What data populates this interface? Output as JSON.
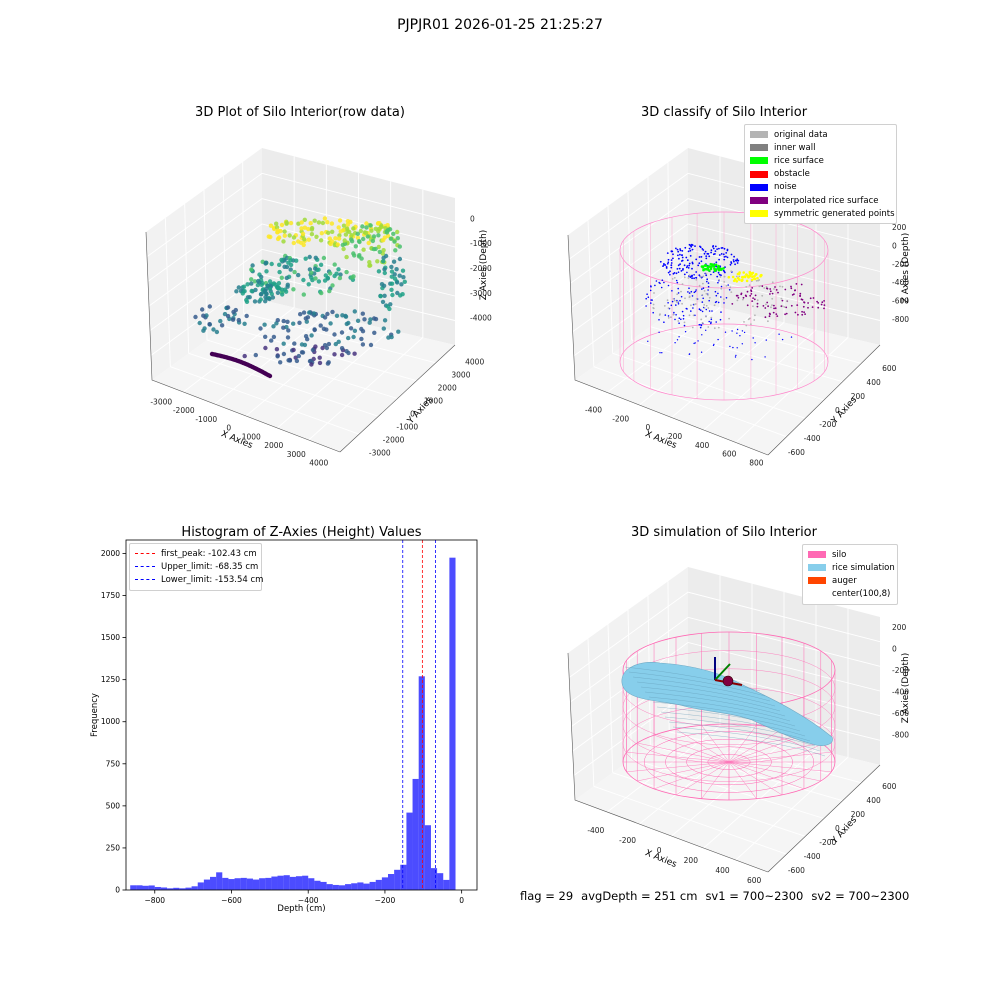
{
  "suptitle": "PJPJR01 2026-01-25 21:25:27",
  "footer": {
    "flag": "flag = 29",
    "avg_depth": "avgDepth = 251 cm",
    "sv1": "sv1 = 700~2300",
    "sv2": "sv2 = 700~2300"
  },
  "chart_data": [
    {
      "type": "scatter",
      "projection": "3d",
      "title": "3D Plot of Silo Interior(row data)",
      "xlabel": "X Axies",
      "ylabel": "Y Axies",
      "zlabel": "Z Axies (Depth)",
      "xticks": [
        "-3000",
        "-2000",
        "-1000",
        "0",
        "1000",
        "2000",
        "3000",
        "4000"
      ],
      "yticks": [
        "-3000",
        "-2000",
        "-1000",
        "0",
        "1000",
        "2000",
        "3000",
        "4000"
      ],
      "zticks": [
        "0",
        "-1000",
        "-2000",
        "-3000",
        "-4000"
      ],
      "colormap": "viridis",
      "grid": true
    },
    {
      "type": "scatter",
      "projection": "3d",
      "title": "3D classify of Silo Interior",
      "xlabel": "X Axies",
      "ylabel": "Y Axies",
      "zlabel": "Z Axies (Depth)",
      "xticks": [
        "-400",
        "-200",
        "0",
        "200",
        "400",
        "600",
        "800"
      ],
      "yticks": [
        "-600",
        "-400",
        "-200",
        "0",
        "200",
        "400",
        "600"
      ],
      "zticks": [
        "200",
        "0",
        "-200",
        "-400",
        "-600",
        "-800"
      ],
      "legend_position": "top-right",
      "legend": [
        {
          "label": "original data",
          "color": "#b4b4b4"
        },
        {
          "label": "inner wall",
          "color": "#808080"
        },
        {
          "label": "rice surface",
          "color": "#00ff00"
        },
        {
          "label": "obstacle",
          "color": "#ff0000"
        },
        {
          "label": "noise",
          "color": "#0000ff"
        },
        {
          "label": "interpolated rice surface",
          "color": "#800080"
        },
        {
          "label": "symmetric generated points",
          "color": "#ffff00"
        }
      ],
      "grid": true
    },
    {
      "type": "bar",
      "title": "Histogram of Z-Axies (Height) Values",
      "xlabel": "Depth (cm)",
      "ylabel": "Frequency",
      "xlim": [
        -875,
        40
      ],
      "ylim": [
        0,
        2080
      ],
      "xticks": [
        -800,
        -600,
        -400,
        -200,
        0
      ],
      "yticks": [
        0,
        250,
        500,
        750,
        1000,
        1250,
        1500,
        1750,
        2000
      ],
      "bar_color": "#0000ff",
      "bin_width": 16,
      "x": [
        -856,
        -840,
        -824,
        -808,
        -792,
        -776,
        -760,
        -744,
        -728,
        -712,
        -696,
        -680,
        -664,
        -648,
        -632,
        -616,
        -600,
        -584,
        -568,
        -552,
        -536,
        -520,
        -504,
        -488,
        -472,
        -456,
        -440,
        -424,
        -408,
        -392,
        -376,
        -360,
        -344,
        -328,
        -312,
        -296,
        -280,
        -264,
        -248,
        -232,
        -216,
        -200,
        -184,
        -168,
        -152,
        -136,
        -120,
        -104,
        -88,
        -72,
        -56,
        -40,
        -24,
        -8
      ],
      "values": [
        28,
        28,
        25,
        27,
        18,
        15,
        10,
        13,
        10,
        14,
        22,
        45,
        62,
        78,
        105,
        72,
        65,
        70,
        72,
        68,
        62,
        70,
        72,
        80,
        85,
        88,
        78,
        82,
        85,
        70,
        55,
        48,
        35,
        30,
        28,
        35,
        40,
        45,
        38,
        48,
        60,
        75,
        95,
        120,
        150,
        460,
        660,
        1270,
        385,
        130,
        100,
        60,
        1975,
        0
      ],
      "vlines": [
        {
          "label": "first_peak: -102.43 cm",
          "x": -102.43,
          "color": "#ff0000"
        },
        {
          "label": "Upper_limit: -68.35 cm",
          "x": -68.35,
          "color": "#0000ff"
        },
        {
          "label": "Lower_limit: -153.54 cm",
          "x": -153.54,
          "color": "#0000ff"
        }
      ],
      "legend_position": "top-left",
      "grid": false
    },
    {
      "type": "scatter",
      "projection": "3d",
      "title": "3D simulation of Silo Interior",
      "xlabel": "X Axies",
      "ylabel": "Y Axies",
      "zlabel": "Z Axies (Depth)",
      "xticks": [
        "-400",
        "-200",
        "0",
        "200",
        "400",
        "600"
      ],
      "yticks": [
        "-600",
        "-400",
        "-200",
        "0",
        "200",
        "400",
        "600"
      ],
      "zticks": [
        "200",
        "0",
        "-200",
        "-400",
        "-600",
        "-800"
      ],
      "legend_position": "top-right",
      "legend": [
        {
          "label": "silo",
          "color": "#ff69b4"
        },
        {
          "label": "rice simulation",
          "color": "#87ceeb"
        },
        {
          "label": "auger",
          "color": "#ff4500"
        },
        {
          "label": "center(100,8)",
          "color": "none"
        }
      ],
      "grid": true
    }
  ]
}
